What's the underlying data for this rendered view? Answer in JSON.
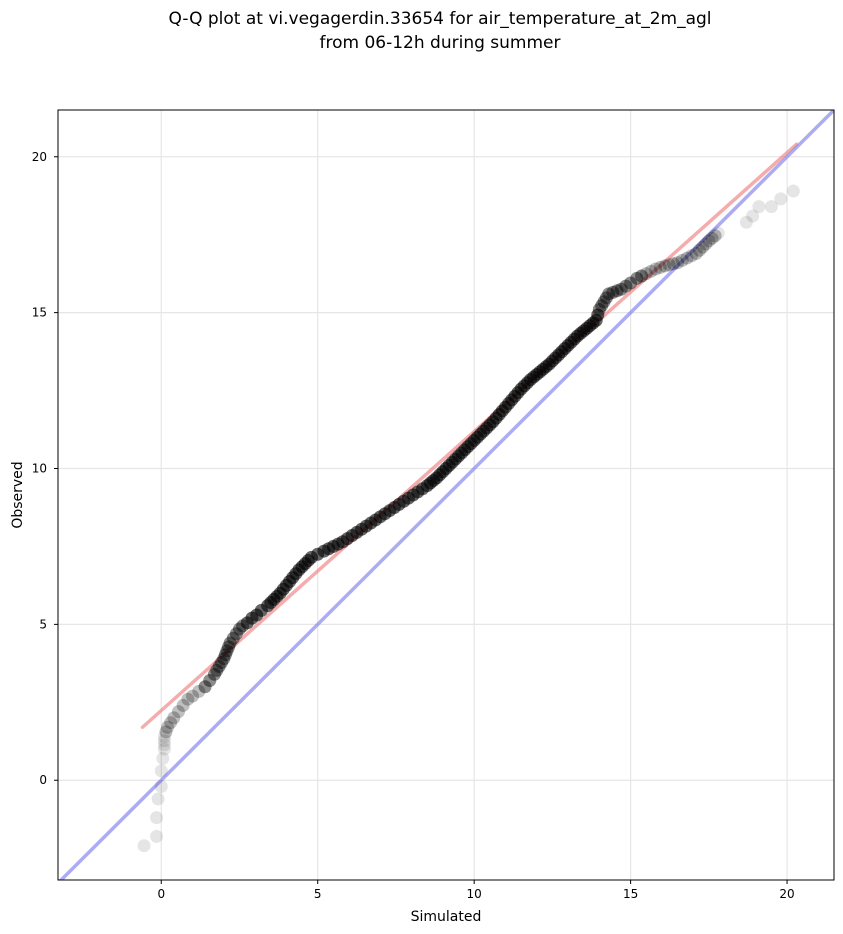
{
  "chart_data": {
    "type": "scatter",
    "title_line1": "Q-Q plot at vi.vegagerdin.33654 for air_temperature_at_2m_agl",
    "title_line2": "from 06-12h during summer",
    "xlabel": "Simulated",
    "ylabel": "Observed",
    "xlim": [
      -3.3,
      21.5
    ],
    "ylim": [
      -3.2,
      21.5
    ],
    "xticks": [
      0,
      5,
      10,
      15,
      20
    ],
    "yticks": [
      0,
      5,
      10,
      15,
      20
    ],
    "grid": true,
    "point_color": "#000000",
    "fit_line_color": "#f08080",
    "identity_line_color": "#8080f0",
    "fit_line": {
      "x": [
        -0.6,
        20.3
      ],
      "y": [
        1.7,
        20.4
      ]
    },
    "identity_line": {
      "x": [
        -3.3,
        21.5
      ],
      "y": [
        -3.3,
        21.5
      ]
    },
    "points": {
      "x": [
        -0.55,
        -0.15,
        -0.15,
        -0.1,
        0.0,
        0.0,
        0.05,
        0.1,
        0.1,
        0.2,
        0.3,
        0.4,
        0.55,
        0.7,
        0.85,
        1.0,
        1.2,
        1.4,
        1.55,
        1.7,
        1.85,
        2.0,
        2.1,
        2.2,
        2.3,
        2.4,
        2.5,
        2.6,
        2.75,
        2.9,
        3.05,
        3.2,
        3.4,
        3.6,
        3.8,
        4.0,
        4.2,
        4.4,
        4.6,
        4.8,
        5.0,
        5.2,
        5.5,
        5.8,
        6.1,
        6.4,
        6.7,
        7.0,
        7.3,
        7.6,
        7.9,
        8.2,
        8.5,
        8.8,
        9.1,
        9.4,
        9.7,
        10.0,
        10.3,
        10.6,
        10.9,
        11.2,
        11.5,
        11.8,
        12.1,
        12.4,
        12.7,
        13.0,
        13.3,
        13.6,
        13.9,
        14.0,
        14.15,
        14.3,
        14.7,
        15.0,
        15.2,
        15.5,
        15.8,
        16.1,
        16.5,
        16.8,
        17.1,
        17.3,
        17.5,
        17.8,
        18.7,
        18.9,
        19.1,
        19.5,
        19.8,
        20.2
      ],
      "y": [
        -2.1,
        -1.8,
        -1.2,
        -0.6,
        -0.2,
        0.3,
        0.7,
        1.0,
        1.4,
        1.7,
        1.85,
        2.0,
        2.2,
        2.4,
        2.6,
        2.7,
        2.85,
        3.0,
        3.2,
        3.4,
        3.65,
        3.9,
        4.15,
        4.4,
        4.55,
        4.7,
        4.85,
        4.95,
        5.05,
        5.2,
        5.3,
        5.45,
        5.6,
        5.8,
        6.0,
        6.25,
        6.5,
        6.75,
        6.95,
        7.15,
        7.25,
        7.35,
        7.5,
        7.65,
        7.85,
        8.05,
        8.25,
        8.45,
        8.65,
        8.85,
        9.05,
        9.25,
        9.45,
        9.7,
        10.0,
        10.3,
        10.6,
        10.9,
        11.2,
        11.5,
        11.85,
        12.2,
        12.55,
        12.85,
        13.1,
        13.35,
        13.65,
        13.95,
        14.25,
        14.5,
        14.75,
        15.1,
        15.35,
        15.6,
        15.75,
        15.95,
        16.1,
        16.25,
        16.4,
        16.5,
        16.6,
        16.75,
        16.9,
        17.1,
        17.3,
        17.55,
        17.9,
        18.1,
        18.4,
        18.4,
        18.65,
        18.9
      ]
    }
  }
}
